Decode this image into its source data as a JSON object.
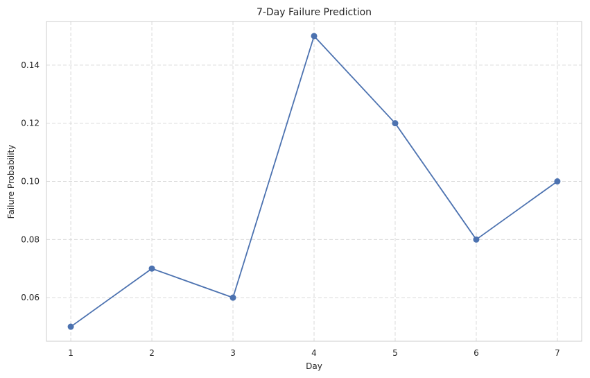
{
  "chart_data": {
    "type": "line",
    "title": "7-Day Failure Prediction",
    "xlabel": "Day",
    "ylabel": "Failure Probability",
    "x": [
      1,
      2,
      3,
      4,
      5,
      6,
      7
    ],
    "series": [
      {
        "name": "Failure Probability",
        "values": [
          0.05,
          0.07,
          0.06,
          0.15,
          0.12,
          0.08,
          0.1
        ],
        "color": "#4c72b0"
      }
    ],
    "xlim": [
      0.7,
      7.3
    ],
    "ylim": [
      0.045,
      0.155
    ],
    "xticks": [
      1,
      2,
      3,
      4,
      5,
      6,
      7
    ],
    "xtick_labels": [
      "1",
      "2",
      "3",
      "4",
      "5",
      "6",
      "7"
    ],
    "yticks": [
      0.06,
      0.08,
      0.1,
      0.12,
      0.14
    ],
    "ytick_labels": [
      "0.06",
      "0.08",
      "0.10",
      "0.12",
      "0.14"
    ],
    "grid": true,
    "marker": "circle"
  }
}
